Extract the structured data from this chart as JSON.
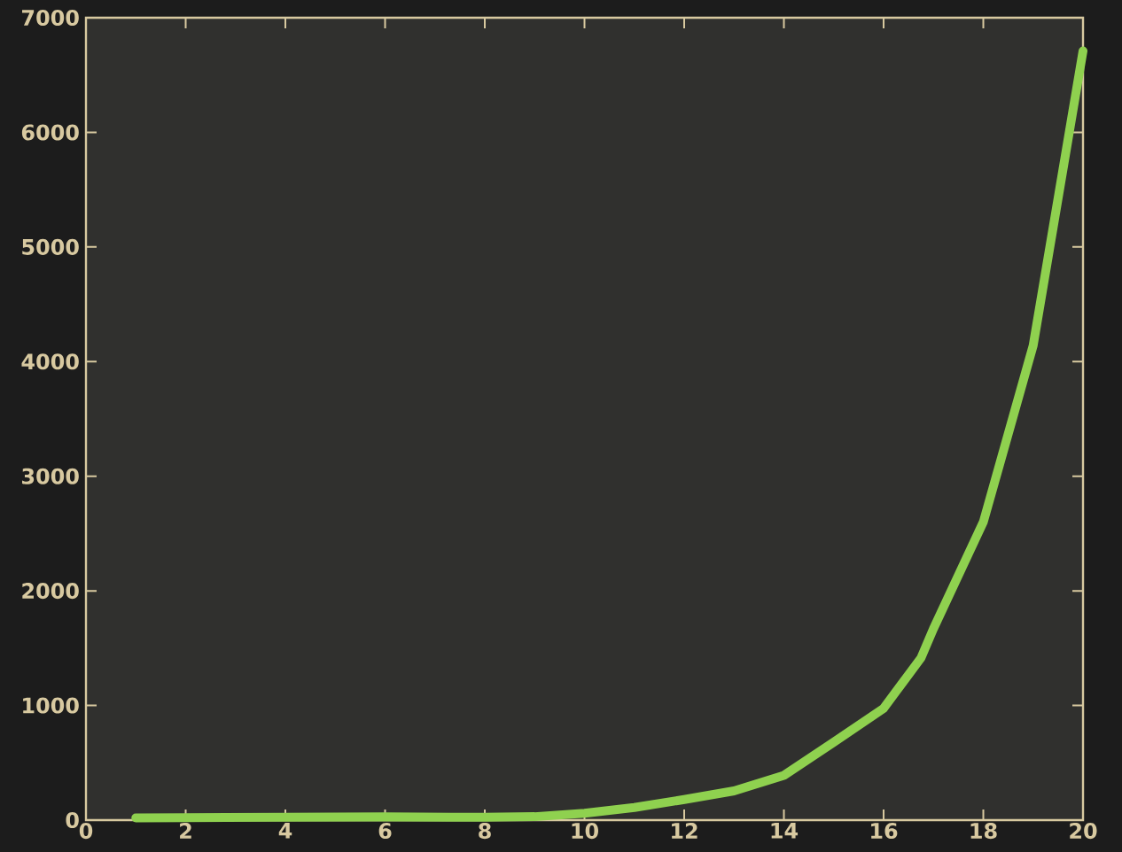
{
  "chart_data": {
    "type": "line",
    "x": [
      1,
      2,
      4,
      6,
      8,
      9,
      10,
      11,
      12,
      13,
      14,
      15,
      16,
      16.75,
      17,
      18,
      19,
      20
    ],
    "series": [
      {
        "color": "#8fd14f",
        "values": [
          20,
          22,
          25,
          28,
          25,
          30,
          60,
          110,
          180,
          255,
          390,
          680,
          975,
          1415,
          1670,
          2600,
          4140,
          6710
        ]
      }
    ],
    "xlim": [
      0,
      20
    ],
    "ylim": [
      0,
      7000
    ],
    "xticks": [
      0,
      2,
      4,
      6,
      8,
      10,
      12,
      14,
      16,
      18,
      20
    ],
    "yticks": [
      0,
      1000,
      2000,
      3000,
      4000,
      5000,
      6000,
      7000
    ],
    "line_style": "solid",
    "grid": false
  }
}
